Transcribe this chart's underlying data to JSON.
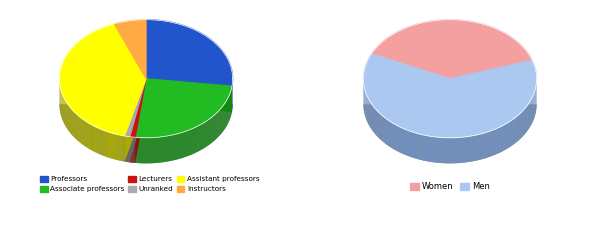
{
  "chart1": {
    "labels": [
      "Professors",
      "Associate professors",
      "Lecturers",
      "Unranked",
      "Assistant professors",
      "Instructors"
    ],
    "values": [
      27,
      25,
      1,
      1,
      40,
      6
    ],
    "colors": [
      "#2255cc",
      "#22bb22",
      "#cc1111",
      "#aaaaaa",
      "#ffff00",
      "#ffaa44"
    ],
    "shadow_colors": [
      "#1133aa",
      "#118811",
      "#881111",
      "#666666",
      "#aaaa00",
      "#bb7722"
    ],
    "startangle": 90
  },
  "chart2": {
    "labels": [
      "Women",
      "Men"
    ],
    "values": [
      38,
      62
    ],
    "colors": [
      "#f4a0a0",
      "#aac8f0"
    ],
    "shadow_colors": [
      "#c07070",
      "#7090c0"
    ],
    "startangle": 155
  },
  "legend1": {
    "items": [
      {
        "label": "Professors",
        "color": "#2255cc"
      },
      {
        "label": "Associate professors",
        "color": "#22bb22"
      },
      {
        "label": "Lecturers",
        "color": "#cc1111"
      },
      {
        "label": "Unranked",
        "color": "#aaaaaa"
      },
      {
        "label": "Assistant professors",
        "color": "#ffff00"
      },
      {
        "label": "Instructors",
        "color": "#ffaa44"
      }
    ]
  },
  "legend2": {
    "items": [
      {
        "label": "Women",
        "color": "#f4a0a0"
      },
      {
        "label": "Men",
        "color": "#aac8f0"
      }
    ]
  },
  "bg_color": "#ffffff"
}
